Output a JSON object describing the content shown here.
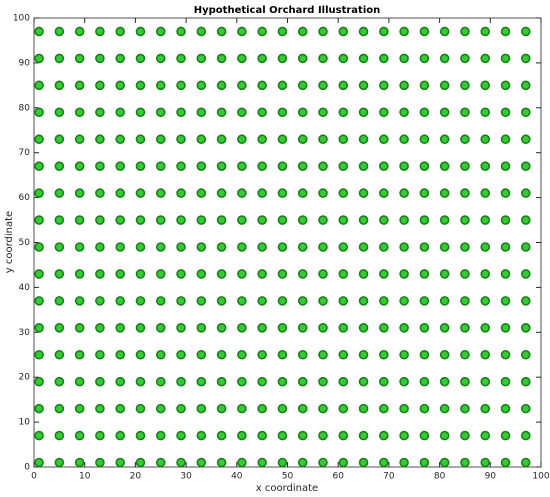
{
  "chart_data": {
    "type": "scatter",
    "title": "Hypothetical Orchard Illustration",
    "x_label": "x coordinate",
    "y_label": "y coordinate",
    "xlim": [
      0,
      100
    ],
    "ylim": [
      0,
      100
    ],
    "xticks": [
      0,
      10,
      20,
      30,
      40,
      50,
      60,
      70,
      80,
      90,
      100
    ],
    "yticks": [
      0,
      10,
      20,
      30,
      40,
      50,
      60,
      70,
      80,
      90,
      100
    ],
    "color": "#33cc33",
    "edge_color": "#1a7f1a",
    "grid": false,
    "x": [
      1,
      5,
      9,
      13,
      17,
      21,
      25,
      29,
      33,
      37,
      41,
      45,
      49,
      53,
      57,
      61,
      65,
      69,
      73,
      77,
      81,
      85,
      89,
      93,
      97,
      1,
      5,
      9,
      13,
      17,
      21,
      25,
      29,
      33,
      37,
      41,
      45,
      49,
      53,
      57,
      61,
      65,
      69,
      73,
      77,
      81,
      85,
      89,
      93,
      97,
      1,
      5,
      9,
      13,
      17,
      21,
      25,
      29,
      33,
      37,
      41,
      45,
      49,
      53,
      57,
      61,
      65,
      69,
      73,
      77,
      81,
      85,
      89,
      93,
      97,
      1,
      5,
      9,
      13,
      17,
      21,
      25,
      29,
      33,
      37,
      41,
      45,
      49,
      53,
      57,
      61,
      65,
      69,
      73,
      77,
      81,
      85,
      89,
      93,
      97,
      1,
      5,
      9,
      13,
      17,
      21,
      25,
      29,
      33,
      37,
      41,
      45,
      49,
      53,
      57,
      61,
      65,
      69,
      73,
      77,
      81,
      85,
      89,
      93,
      97,
      1,
      5,
      9,
      13,
      17,
      21,
      25,
      29,
      33,
      37,
      41,
      45,
      49,
      53,
      57,
      61,
      65,
      69,
      73,
      77,
      81,
      85,
      89,
      93,
      97,
      1,
      5,
      9,
      13,
      17,
      21,
      25,
      29,
      33,
      37,
      41,
      45,
      49,
      53,
      57,
      61,
      65,
      69,
      73,
      77,
      81,
      85,
      89,
      93,
      97,
      1,
      5,
      9,
      13,
      17,
      21,
      25,
      29,
      33,
      37,
      41,
      45,
      49,
      53,
      57,
      61,
      65,
      69,
      73,
      77,
      81,
      85,
      89,
      93,
      97,
      1,
      5,
      9,
      13,
      17,
      21,
      25,
      29,
      33,
      37,
      41,
      45,
      49,
      53,
      57,
      61,
      65,
      69,
      73,
      77,
      81,
      85,
      89,
      93,
      97,
      1,
      5,
      9,
      13,
      17,
      21,
      25,
      29,
      33,
      37,
      41,
      45,
      49,
      53,
      57,
      61,
      65,
      69,
      73,
      77,
      81,
      85,
      89,
      93,
      97,
      1,
      5,
      9,
      13,
      17,
      21,
      25,
      29,
      33,
      37,
      41,
      45,
      49,
      53,
      57,
      61,
      65,
      69,
      73,
      77,
      81,
      85,
      89,
      93,
      97,
      1,
      5,
      9,
      13,
      17,
      21,
      25,
      29,
      33,
      37,
      41,
      45,
      49,
      53,
      57,
      61,
      65,
      69,
      73,
      77,
      81,
      85,
      89,
      93,
      97,
      1,
      5,
      9,
      13,
      17,
      21,
      25,
      29,
      33,
      37,
      41,
      45,
      49,
      53,
      57,
      61,
      65,
      69,
      73,
      77,
      81,
      85,
      89,
      93,
      97,
      1,
      5,
      9,
      13,
      17,
      21,
      25,
      29,
      33,
      37,
      41,
      45,
      49,
      53,
      57,
      61,
      65,
      69,
      73,
      77,
      81,
      85,
      89,
      93,
      97,
      1,
      5,
      9,
      13,
      17,
      21,
      25,
      29,
      33,
      37,
      41,
      45,
      49,
      53,
      57,
      61,
      65,
      69,
      73,
      77,
      81,
      85,
      89,
      93,
      97,
      1,
      5,
      9,
      13,
      17,
      21,
      25,
      29,
      33,
      37,
      41,
      45,
      49,
      53,
      57,
      61,
      65,
      69,
      73,
      77,
      81,
      85,
      89,
      93,
      97,
      1,
      5,
      9,
      13,
      17,
      21,
      25,
      29,
      33,
      37,
      41,
      45,
      49,
      53,
      57,
      61,
      65,
      69,
      73,
      77,
      81,
      85,
      89,
      93,
      97
    ],
    "y": [
      1,
      1,
      1,
      1,
      1,
      1,
      1,
      1,
      1,
      1,
      1,
      1,
      1,
      1,
      1,
      1,
      1,
      1,
      1,
      1,
      1,
      1,
      1,
      1,
      1,
      7,
      7,
      7,
      7,
      7,
      7,
      7,
      7,
      7,
      7,
      7,
      7,
      7,
      7,
      7,
      7,
      7,
      7,
      7,
      7,
      7,
      7,
      7,
      7,
      7,
      13,
      13,
      13,
      13,
      13,
      13,
      13,
      13,
      13,
      13,
      13,
      13,
      13,
      13,
      13,
      13,
      13,
      13,
      13,
      13,
      13,
      13,
      13,
      13,
      13,
      19,
      19,
      19,
      19,
      19,
      19,
      19,
      19,
      19,
      19,
      19,
      19,
      19,
      19,
      19,
      19,
      19,
      19,
      19,
      19,
      19,
      19,
      19,
      19,
      19,
      25,
      25,
      25,
      25,
      25,
      25,
      25,
      25,
      25,
      25,
      25,
      25,
      25,
      25,
      25,
      25,
      25,
      25,
      25,
      25,
      25,
      25,
      25,
      25,
      25,
      31,
      31,
      31,
      31,
      31,
      31,
      31,
      31,
      31,
      31,
      31,
      31,
      31,
      31,
      31,
      31,
      31,
      31,
      31,
      31,
      31,
      31,
      31,
      31,
      31,
      37,
      37,
      37,
      37,
      37,
      37,
      37,
      37,
      37,
      37,
      37,
      37,
      37,
      37,
      37,
      37,
      37,
      37,
      37,
      37,
      37,
      37,
      37,
      37,
      37,
      43,
      43,
      43,
      43,
      43,
      43,
      43,
      43,
      43,
      43,
      43,
      43,
      43,
      43,
      43,
      43,
      43,
      43,
      43,
      43,
      43,
      43,
      43,
      43,
      43,
      49,
      49,
      49,
      49,
      49,
      49,
      49,
      49,
      49,
      49,
      49,
      49,
      49,
      49,
      49,
      49,
      49,
      49,
      49,
      49,
      49,
      49,
      49,
      49,
      49,
      55,
      55,
      55,
      55,
      55,
      55,
      55,
      55,
      55,
      55,
      55,
      55,
      55,
      55,
      55,
      55,
      55,
      55,
      55,
      55,
      55,
      55,
      55,
      55,
      55,
      61,
      61,
      61,
      61,
      61,
      61,
      61,
      61,
      61,
      61,
      61,
      61,
      61,
      61,
      61,
      61,
      61,
      61,
      61,
      61,
      61,
      61,
      61,
      61,
      61,
      67,
      67,
      67,
      67,
      67,
      67,
      67,
      67,
      67,
      67,
      67,
      67,
      67,
      67,
      67,
      67,
      67,
      67,
      67,
      67,
      67,
      67,
      67,
      67,
      67,
      73,
      73,
      73,
      73,
      73,
      73,
      73,
      73,
      73,
      73,
      73,
      73,
      73,
      73,
      73,
      73,
      73,
      73,
      73,
      73,
      73,
      73,
      73,
      73,
      73,
      79,
      79,
      79,
      79,
      79,
      79,
      79,
      79,
      79,
      79,
      79,
      79,
      79,
      79,
      79,
      79,
      79,
      79,
      79,
      79,
      79,
      79,
      79,
      79,
      79,
      85,
      85,
      85,
      85,
      85,
      85,
      85,
      85,
      85,
      85,
      85,
      85,
      85,
      85,
      85,
      85,
      85,
      85,
      85,
      85,
      85,
      85,
      85,
      85,
      85,
      91,
      91,
      91,
      91,
      91,
      91,
      91,
      91,
      91,
      91,
      91,
      91,
      91,
      91,
      91,
      91,
      91,
      91,
      91,
      91,
      91,
      91,
      91,
      91,
      91,
      97,
      97,
      97,
      97,
      97,
      97,
      97,
      97,
      97,
      97,
      97,
      97,
      97,
      97,
      97,
      97,
      97,
      97,
      97,
      97,
      97,
      97,
      97,
      97,
      97
    ]
  }
}
